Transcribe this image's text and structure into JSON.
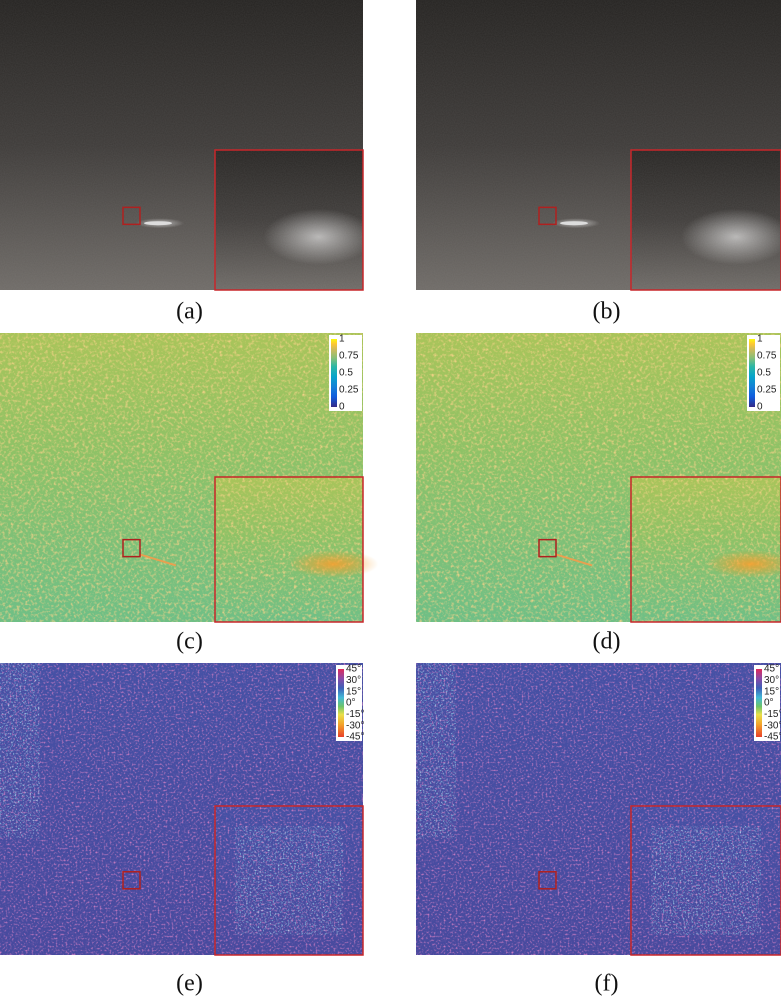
{
  "panels": [
    {
      "label": "(a)"
    },
    {
      "label": "(b)"
    },
    {
      "label": "(c)",
      "colorbar": [
        "1",
        "0.75",
        "0.5",
        "0.25",
        "0"
      ]
    },
    {
      "label": "(d)",
      "colorbar": [
        "1",
        "0.75",
        "0.5",
        "0.25",
        "0"
      ]
    },
    {
      "label": "(e)",
      "colorbar": [
        "45°",
        "30°",
        "15°",
        "0°",
        "-15°",
        "-30°",
        "-45°"
      ]
    },
    {
      "label": "(f)",
      "colorbar": [
        "45°",
        "30°",
        "15°",
        "0°",
        "-15°",
        "-30°",
        "-45°"
      ]
    }
  ]
}
